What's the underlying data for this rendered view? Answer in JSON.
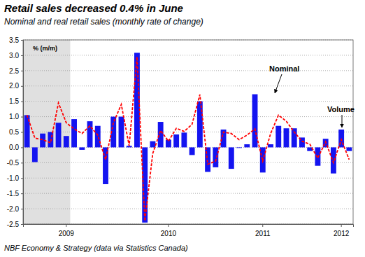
{
  "chart_data": {
    "type": "bar",
    "title": "Retail sales decreased 0.4% in June",
    "subtitle": "Nominal and real retail sales (monthly rate of change)",
    "y_label": "% (m/m)",
    "source": "NBF Economy & Strategy (data via Statistics Canada)",
    "categories": [
      null,
      null,
      null,
      null,
      null,
      "2009",
      null,
      null,
      null,
      null,
      null,
      null,
      null,
      null,
      null,
      null,
      null,
      null,
      "2010",
      null,
      null,
      null,
      null,
      null,
      null,
      null,
      null,
      null,
      null,
      null,
      "2011",
      null,
      null,
      null,
      null,
      null,
      null,
      null,
      null,
      null,
      "2012",
      null
    ],
    "shaded": {
      "from": 0,
      "to": 5
    },
    "series": [
      {
        "name": "Volume",
        "type": "bar",
        "color": "#1414f0",
        "values": [
          1.05,
          -0.48,
          0.45,
          0.5,
          0.8,
          0.37,
          0.92,
          -0.08,
          0.85,
          0.7,
          -1.2,
          1.0,
          1.0,
          0.05,
          3.08,
          -2.45,
          0.2,
          0.83,
          0.25,
          0.42,
          0.48,
          -0.25,
          1.5,
          -0.8,
          -0.65,
          0.58,
          -0.7,
          -0.02,
          0.1,
          1.73,
          -0.82,
          0.1,
          0.7,
          0.62,
          0.62,
          0.32,
          -0.12,
          -0.6,
          0.28,
          -0.85,
          0.58,
          -0.12
        ]
      },
      {
        "name": "Nominal",
        "type": "line",
        "color": "#ff0000",
        "line_style": "dashed",
        "values": [
          1.05,
          0.3,
          0.25,
          0.15,
          1.45,
          0.8,
          0.6,
          0.45,
          0.7,
          0.4,
          -0.4,
          0.8,
          1.4,
          0.05,
          2.95,
          -2.4,
          -0.2,
          0.55,
          0.2,
          0.62,
          0.52,
          0.75,
          1.72,
          -0.55,
          -0.45,
          0.5,
          0.45,
          0.25,
          0.4,
          0.6,
          -0.45,
          0.45,
          1.05,
          0.85,
          0.5,
          0.2,
          0.1,
          -0.35,
          0.18,
          -0.5,
          0.25,
          -0.4
        ]
      }
    ],
    "ylim": [
      -2.5,
      3.5
    ],
    "yticks": [
      {
        "value": -2.5,
        "label": "-2.5"
      },
      {
        "value": -2,
        "label": "-2.0"
      },
      {
        "value": -1.5,
        "label": "-1.5"
      },
      {
        "value": -1,
        "label": "-1.0"
      },
      {
        "value": -0.5,
        "label": "-0.5"
      },
      {
        "value": 0,
        "label": "0.0"
      },
      {
        "value": 0.5,
        "label": "0.5"
      },
      {
        "value": 1,
        "label": "1.0"
      },
      {
        "value": 1.5,
        "label": "1.5"
      },
      {
        "value": 2,
        "label": "2.0"
      },
      {
        "value": 2.5,
        "label": "2.5"
      },
      {
        "value": 3,
        "label": "3.0"
      },
      {
        "value": 3.5,
        "label": "3.5"
      }
    ],
    "grid": true
  }
}
